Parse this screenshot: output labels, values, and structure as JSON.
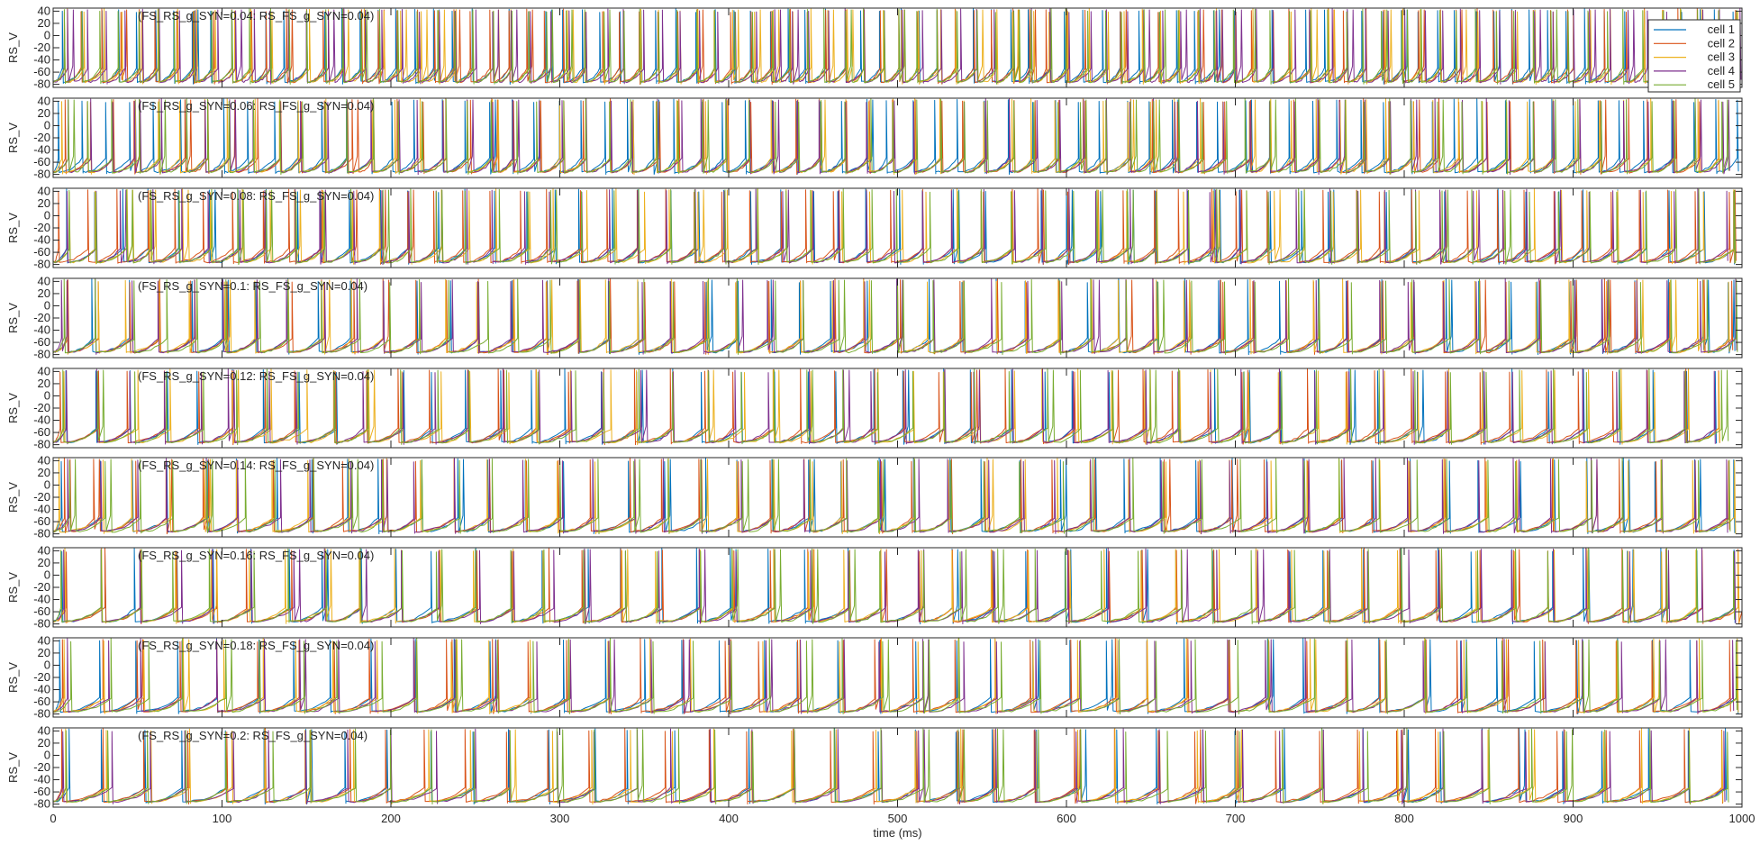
{
  "chart_data": {
    "type": "line",
    "title": "",
    "xlabel": "time (ms)",
    "ylabel": "RS_V",
    "xlim": [
      0,
      1000
    ],
    "ylim": [
      -85,
      45
    ],
    "x_ticks": [
      0,
      100,
      200,
      300,
      400,
      500,
      600,
      700,
      800,
      900,
      1000
    ],
    "y_ticks": [
      -80,
      -60,
      -40,
      -20,
      0,
      20,
      40
    ],
    "grid": false,
    "legend_position": "top-right",
    "series": [
      {
        "name": "cell 1",
        "color": "#0072BD"
      },
      {
        "name": "cell 2",
        "color": "#D95319"
      },
      {
        "name": "cell 3",
        "color": "#EDB120"
      },
      {
        "name": "cell 4",
        "color": "#7E2F8E"
      },
      {
        "name": "cell 5",
        "color": "#77AC30"
      }
    ],
    "panels": [
      {
        "label": "(FS_RS_g_SYN=0.04: RS_FS_g_SYN=0.04)",
        "fs_rs_g_syn": 0.04,
        "rs_fs_g_syn": 0.04,
        "approx_spike_interval_ms": 11
      },
      {
        "label": "(FS_RS_g_SYN=0.06: RS_FS_g_SYN=0.04)",
        "fs_rs_g_syn": 0.06,
        "rs_fs_g_syn": 0.04,
        "approx_spike_interval_ms": 14
      },
      {
        "label": "(FS_RS_g_SYN=0.08: RS_FS_g_SYN=0.04)",
        "fs_rs_g_syn": 0.08,
        "rs_fs_g_syn": 0.04,
        "approx_spike_interval_ms": 17
      },
      {
        "label": "(FS_RS_g_SYN=0.1: RS_FS_g_SYN=0.04)",
        "fs_rs_g_syn": 0.1,
        "rs_fs_g_syn": 0.04,
        "approx_spike_interval_ms": 19
      },
      {
        "label": "(FS_RS_g_SYN=0.12: RS_FS_g_SYN=0.04)",
        "fs_rs_g_syn": 0.12,
        "rs_fs_g_syn": 0.04,
        "approx_spike_interval_ms": 20
      },
      {
        "label": "(FS_RS_g_SYN=0.14: RS_FS_g_SYN=0.04)",
        "fs_rs_g_syn": 0.14,
        "rs_fs_g_syn": 0.04,
        "approx_spike_interval_ms": 21
      },
      {
        "label": "(FS_RS_g_SYN=0.16: RS_FS_g_SYN=0.04)",
        "fs_rs_g_syn": 0.16,
        "rs_fs_g_syn": 0.04,
        "approx_spike_interval_ms": 22
      },
      {
        "label": "(FS_RS_g_SYN=0.18: RS_FS_g_SYN=0.04)",
        "fs_rs_g_syn": 0.18,
        "rs_fs_g_syn": 0.04,
        "approx_spike_interval_ms": 23
      },
      {
        "label": "(FS_RS_g_SYN=0.2: RS_FS_g_SYN=0.04)",
        "fs_rs_g_syn": 0.2,
        "rs_fs_g_syn": 0.04,
        "approx_spike_interval_ms": 24
      }
    ]
  }
}
